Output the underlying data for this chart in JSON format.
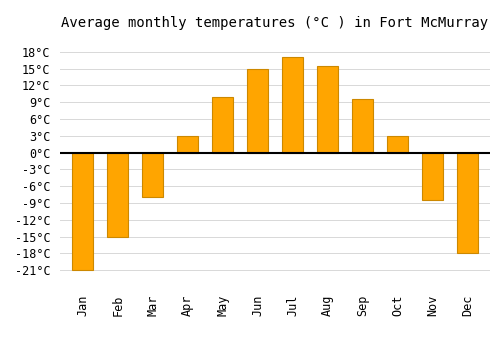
{
  "months": [
    "Jan",
    "Feb",
    "Mar",
    "Apr",
    "May",
    "Jun",
    "Jul",
    "Aug",
    "Sep",
    "Oct",
    "Nov",
    "Dec"
  ],
  "temperatures": [
    -21,
    -15,
    -8,
    3,
    10,
    15,
    17,
    15.5,
    9.5,
    3,
    -8.5,
    -18
  ],
  "bar_color": "#FFA500",
  "bar_edge_color": "#CC8800",
  "bar_color_gradient_top": "#FFD080",
  "title": "Average monthly temperatures (°C ) in Fort McMurray",
  "ylim_min": -24,
  "ylim_max": 21,
  "yticks": [
    -21,
    -18,
    -15,
    -12,
    -9,
    -6,
    -3,
    0,
    3,
    6,
    9,
    12,
    15,
    18
  ],
  "ytick_labels": [
    "-21°C",
    "-18°C",
    "-15°C",
    "-12°C",
    "-9°C",
    "-6°C",
    "-3°C",
    "0°C",
    "3°C",
    "6°C",
    "9°C",
    "12°C",
    "15°C",
    "18°C"
  ],
  "background_color": "#ffffff",
  "plot_bg_color": "#ffffff",
  "grid_color": "#d8d8d8",
  "title_fontsize": 10,
  "tick_fontsize": 8.5,
  "bar_width": 0.6
}
